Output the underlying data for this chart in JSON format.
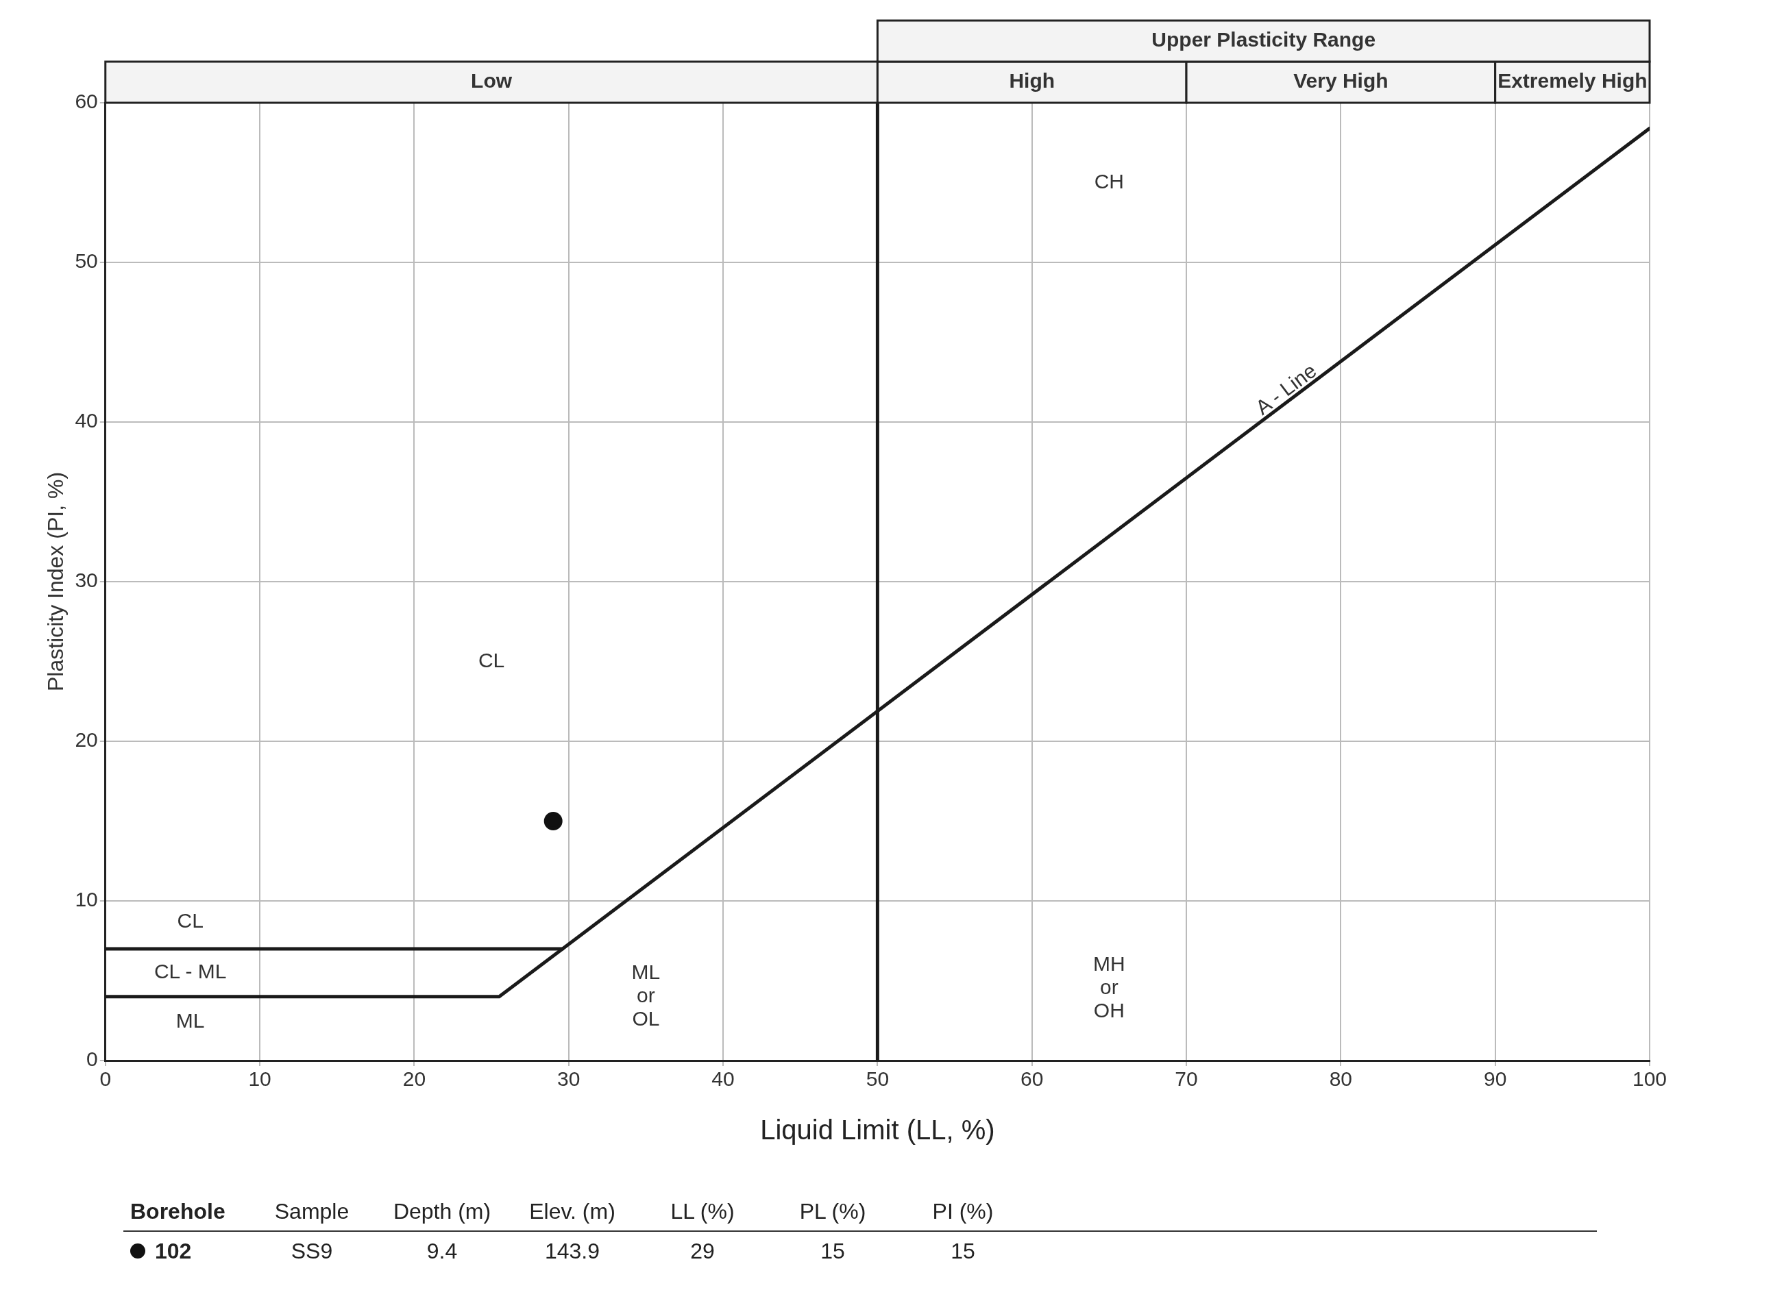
{
  "chart_data": {
    "type": "line",
    "xlabel": "Liquid Limit (LL, %)",
    "ylabel": "Plasticity Index (PI, %)",
    "xlim": [
      0,
      100
    ],
    "ylim": [
      0,
      60
    ],
    "xticks": [
      0,
      10,
      20,
      30,
      40,
      50,
      60,
      70,
      80,
      90,
      100
    ],
    "yticks": [
      0,
      10,
      20,
      30,
      40,
      50,
      60
    ],
    "grid": true,
    "series": [
      {
        "x": [
          0,
          25.5,
          100
        ],
        "values": [
          4,
          4,
          58.4
        ],
        "color": "#1a1a1a",
        "marker": "none"
      },
      {
        "x": [
          0,
          29.6
        ],
        "values": [
          7,
          7
        ],
        "color": "#1a1a1a",
        "marker": "none"
      },
      {
        "type": "scatter",
        "name": "102",
        "x": [
          29
        ],
        "values": [
          15
        ],
        "color": "#111111",
        "marker": "circle"
      }
    ],
    "ref_lines": [
      {
        "axis": "x",
        "value": 50,
        "color": "#1a1a1a"
      }
    ],
    "annotations": [
      "CL",
      "CH",
      "CL",
      "CL - ML",
      "ML",
      "ML\nor\nOL",
      "MH\nor\nOH",
      "A - Line",
      "Low",
      "High",
      "Very High",
      "Extremely High",
      "Upper Plasticity Range",
      "Borehole",
      "Sample",
      "Depth (m)",
      "Elev. (m)",
      "LL (%)",
      "PL (%)",
      "PI (%)",
      "SS9",
      "9.4",
      "143.9",
      "29",
      "15",
      "15"
    ]
  }
}
